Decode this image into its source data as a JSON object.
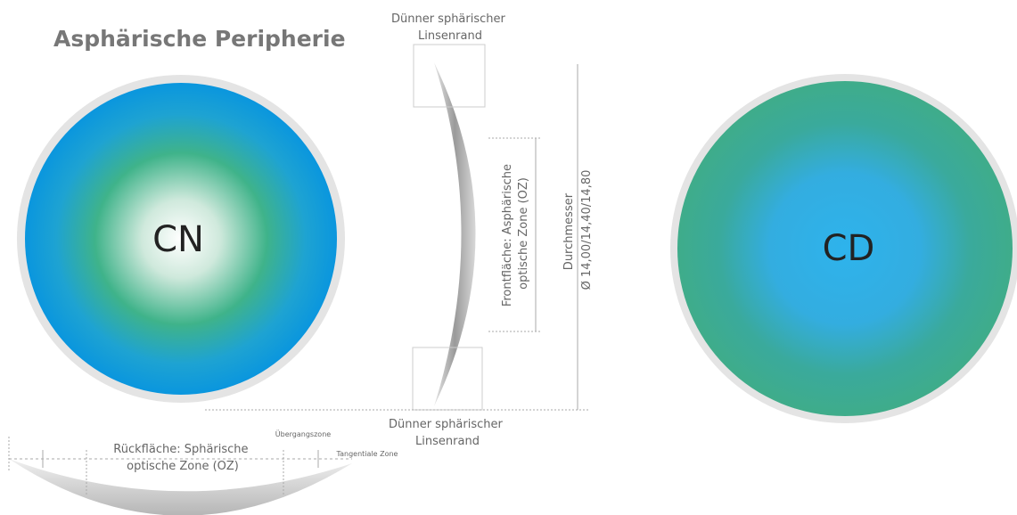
{
  "title": "Asphärische Peripherie",
  "lenses": [
    {
      "label": "CN"
    },
    {
      "label": "CD"
    }
  ],
  "top_edge": {
    "lines": [
      "Dünner sphärischer",
      "Linsenrand"
    ]
  },
  "bottom_edge": {
    "lines": [
      "Dünner sphärischer",
      "Linsenrand"
    ]
  },
  "front_zone": {
    "lines": [
      "Frontfläche: Asphärische",
      "optische Zone (OZ)"
    ]
  },
  "diameter": {
    "lines": [
      "Durchmesser",
      "Ø 14,00/14,40/14,80"
    ]
  },
  "back_zone": {
    "lines": [
      "Rückfläche: Sphärische",
      "optische Zone (OZ)"
    ]
  },
  "transition_zone": "Übergangszone",
  "tangential_zone": "Tangentiale Zone"
}
